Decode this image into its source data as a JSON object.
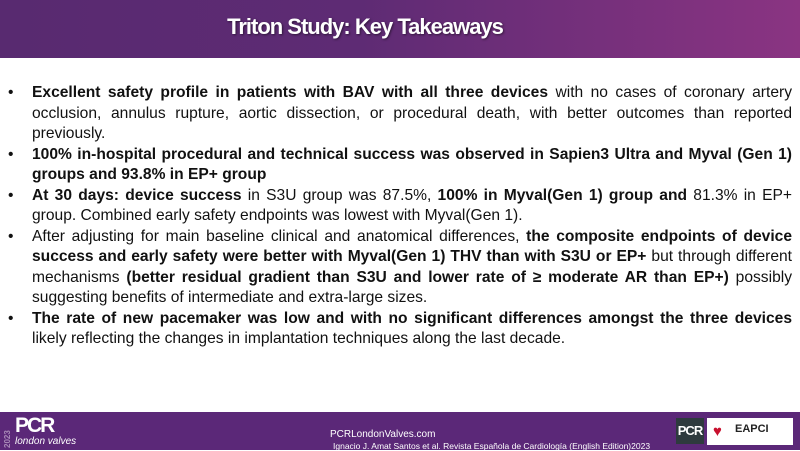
{
  "header": {
    "title": "Triton Study: Key Takeaways"
  },
  "bullets": [
    {
      "segments": [
        {
          "text": "Excellent safety profile in patients with BAV with all three devices",
          "bold": true
        },
        {
          "text": " with no cases of coronary artery occlusion, annulus rupture, aortic dissection, or procedural death, with better outcomes than reported previously.",
          "bold": false
        }
      ]
    },
    {
      "segments": [
        {
          "text": "100% in-hospital procedural and technical success was observed in Sapien3 Ultra and Myval (Gen 1) groups and 93.8% in EP+ group",
          "bold": true
        }
      ]
    },
    {
      "segments": [
        {
          "text": "At 30 days: device success",
          "bold": true
        },
        {
          "text": " in S3U group was 87.5%, ",
          "bold": false
        },
        {
          "text": "100% in Myval(Gen 1) group and",
          "bold": true
        },
        {
          "text": " 81.3% in EP+ group. Combined early safety endpoints was lowest with Myval(Gen 1).",
          "bold": false
        }
      ]
    },
    {
      "segments": [
        {
          "text": "After adjusting for main baseline clinical and anatomical differences, ",
          "bold": false
        },
        {
          "text": "the composite endpoints of device success and early safety were better with Myval(Gen 1) THV than with S3U or EP+",
          "bold": true
        },
        {
          "text": " but through different mechanisms ",
          "bold": false
        },
        {
          "text": "(better residual gradient than S3U and lower rate of ≥ moderate AR than EP+)",
          "bold": true
        },
        {
          "text": " possibly suggesting benefits of intermediate and extra-large sizes.",
          "bold": false
        }
      ]
    },
    {
      "segments": [
        {
          "text": "The rate of new pacemaker was low and with no significant differences amongst the three devices",
          "bold": true
        },
        {
          "text": " likely reflecting the changes in implantation techniques along the last decade.",
          "bold": false
        }
      ]
    }
  ],
  "bullet_char": "•",
  "footer": {
    "year": "2023",
    "logo": "PCR",
    "logo_sub": "london valves",
    "site": "PCRLondonValves.com",
    "citation": "Ignacio J. Amat Santos et al. Revista Española de Cardiología (English Edition)2023",
    "pcr_badge": "PCR",
    "eapci": "EAPCI"
  }
}
